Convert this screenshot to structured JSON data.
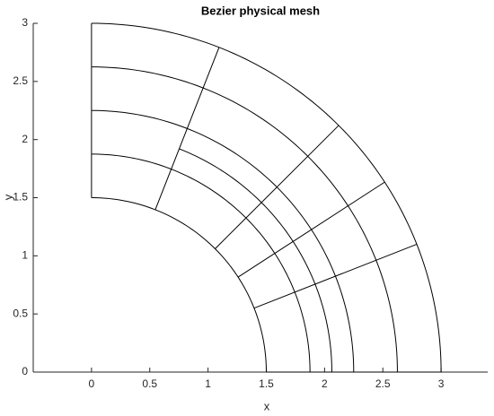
{
  "chart_data": {
    "type": "mesh",
    "title": "Bezier physical mesh",
    "x_label": "x",
    "y_label": "y",
    "xlim": [
      -0.5,
      3.4
    ],
    "ylim": [
      0,
      3
    ],
    "xticks": [
      0,
      0.5,
      1,
      1.5,
      2,
      2.5,
      3
    ],
    "yticks": [
      0,
      0.5,
      1,
      1.5,
      2,
      2.5,
      3
    ],
    "color": "#000000",
    "arcs": [
      {
        "r": 1.5,
        "theta": [
          0,
          90
        ]
      },
      {
        "r": 1.875,
        "theta": [
          0,
          90
        ]
      },
      {
        "r": 2.0625,
        "theta": [
          0,
          68.6
        ]
      },
      {
        "r": 2.25,
        "theta": [
          0,
          90
        ]
      },
      {
        "r": 2.625,
        "theta": [
          0,
          90
        ]
      },
      {
        "r": 3,
        "theta": [
          0,
          90
        ]
      }
    ],
    "radials": [
      {
        "theta": 0,
        "r": [
          1.5,
          3
        ]
      },
      {
        "theta": 21.5,
        "r": [
          1.5,
          3
        ]
      },
      {
        "theta": 33,
        "r": [
          1.5,
          3
        ]
      },
      {
        "theta": 45,
        "r": [
          1.5,
          3
        ]
      },
      {
        "theta": 68.6,
        "r": [
          1.5,
          3
        ]
      },
      {
        "theta": 90,
        "r": [
          1.5,
          3
        ]
      }
    ]
  }
}
